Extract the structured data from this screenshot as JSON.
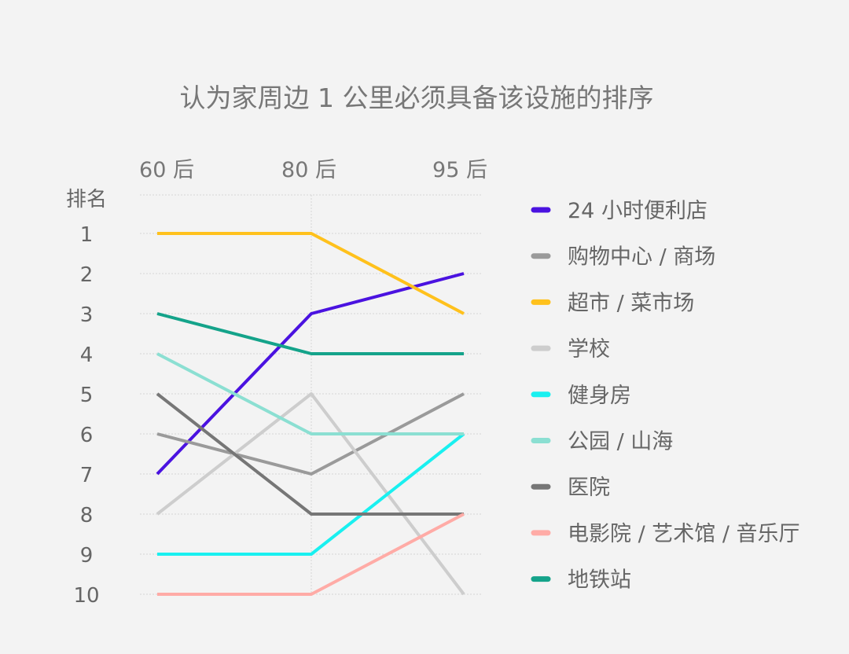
{
  "chart_data": {
    "type": "line",
    "title": "认为家周边 1 公里必须具备该设施的排序",
    "ylabel": "排名",
    "categories": [
      "60 后",
      "80 后",
      "95 后"
    ],
    "ylim": [
      1,
      10
    ],
    "y_inverted": true,
    "y_ticks": [
      "1",
      "2",
      "3",
      "4",
      "5",
      "6",
      "7",
      "8",
      "9",
      "10"
    ],
    "grid": true,
    "legend_position": "right",
    "series": [
      {
        "name": "24 小时便利店",
        "color": "#4a12e0",
        "values": [
          7,
          3,
          2
        ]
      },
      {
        "name": "购物中心 / 商场",
        "color": "#9a9a9a",
        "values": [
          6,
          7,
          5
        ]
      },
      {
        "name": "超市 / 菜市场",
        "color": "#ffc11c",
        "values": [
          1,
          1,
          3
        ]
      },
      {
        "name": "学校",
        "color": "#cdcdcd",
        "values": [
          8,
          5,
          10
        ]
      },
      {
        "name": "健身房",
        "color": "#19f0f0",
        "values": [
          9,
          9,
          6
        ]
      },
      {
        "name": "公园 / 山海",
        "color": "#8bdfd2",
        "values": [
          4,
          6,
          6
        ]
      },
      {
        "name": "医院",
        "color": "#767676",
        "values": [
          5,
          8,
          8
        ]
      },
      {
        "name": "电影院 / 艺术馆 / 音乐厅",
        "color": "#ffaba6",
        "values": [
          10,
          10,
          8
        ]
      },
      {
        "name": "地铁站",
        "color": "#14a38a",
        "values": [
          3,
          4,
          4
        ]
      }
    ]
  }
}
